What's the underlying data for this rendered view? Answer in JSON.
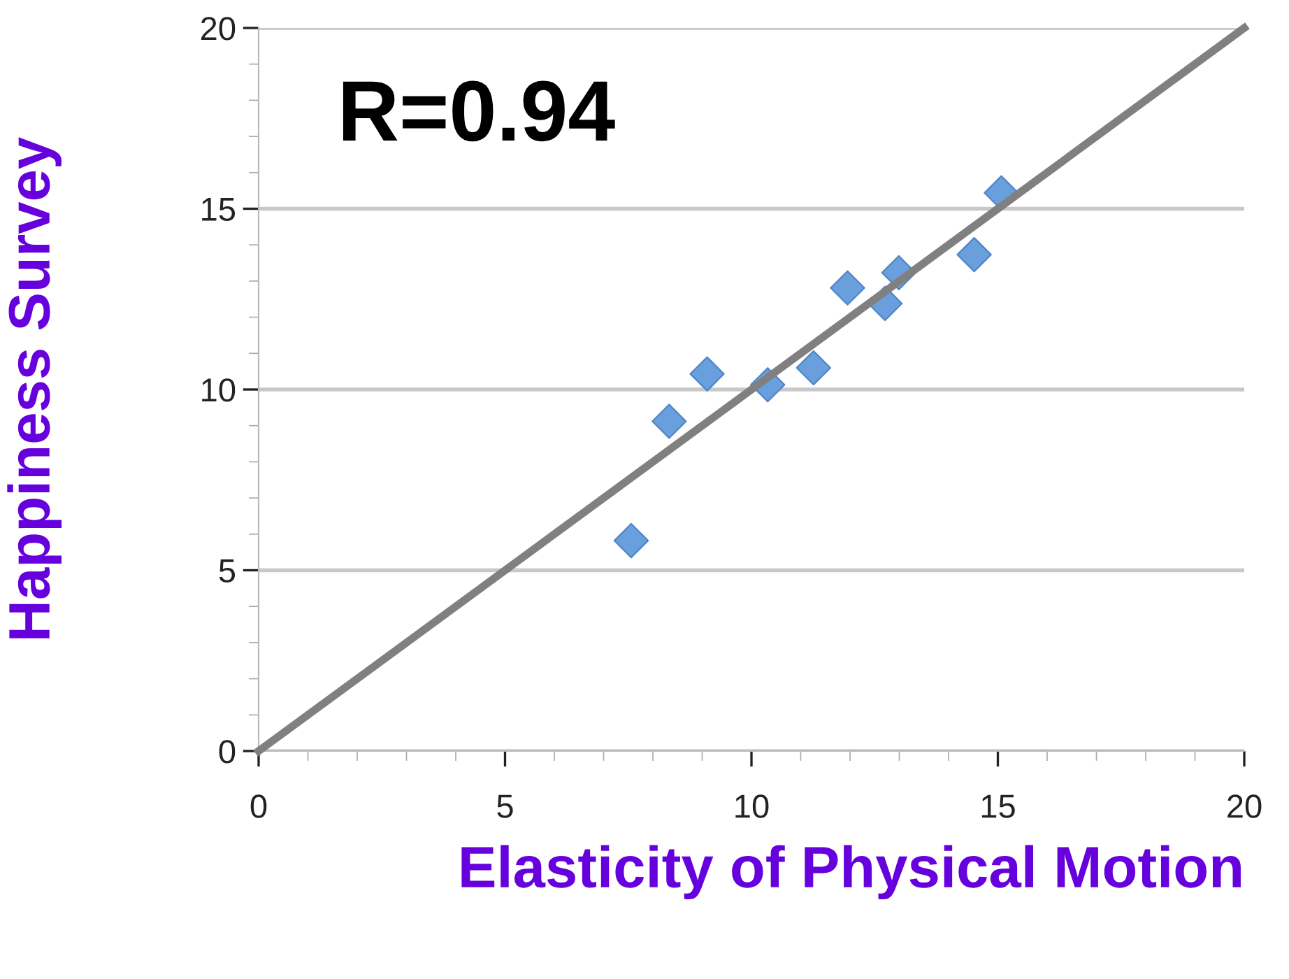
{
  "chart_data": {
    "type": "scatter",
    "xlabel": "Elasticity of Physical Motion",
    "ylabel": "Happiness Survey",
    "annotations": [
      "R=0.94"
    ],
    "series": [
      {
        "color": "#6a9fde",
        "marker": "diamond",
        "x": [
          7.56,
          8.33,
          9.1,
          10.33,
          11.26,
          11.95,
          12.71,
          12.99,
          14.52,
          15.07
        ],
        "values": [
          5.82,
          9.12,
          10.43,
          10.13,
          10.6,
          12.81,
          12.38,
          13.23,
          13.73,
          15.44
        ]
      },
      {
        "type": "line",
        "color": "#808080",
        "marker": "none",
        "line_style": "solid",
        "x": [
          0,
          20
        ],
        "values": [
          0,
          20
        ]
      }
    ],
    "xlim": [
      0,
      20
    ],
    "ylim": [
      0,
      20
    ],
    "xticks": [
      0,
      5,
      10,
      15,
      20
    ],
    "yticks": [
      0,
      5,
      10,
      15,
      20
    ],
    "grid": "y",
    "legend": false
  }
}
